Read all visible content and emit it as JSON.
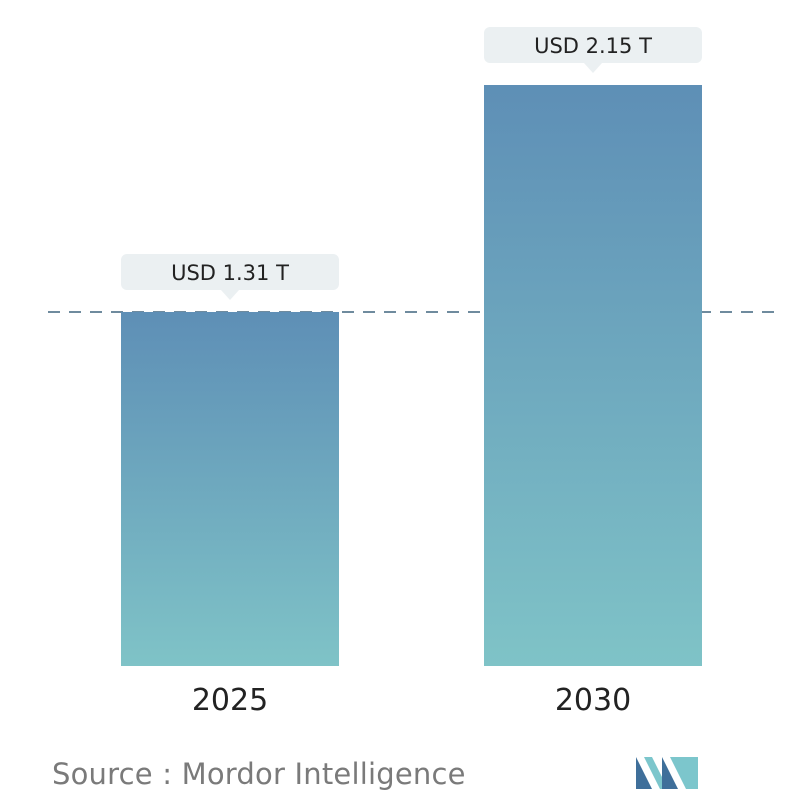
{
  "chart_data": {
    "type": "bar",
    "categories": [
      "2025",
      "2030"
    ],
    "values": [
      1.31,
      2.15
    ],
    "value_labels": [
      "USD 1.31 T",
      "USD 2.15 T"
    ],
    "title": "",
    "xlabel": "",
    "ylabel": "",
    "ylim": [
      0,
      2.15
    ],
    "reference_line_value": 1.31,
    "grid": false,
    "legend": "none"
  },
  "source": {
    "label": "Source :",
    "name": "Mordor Intelligence"
  },
  "colors": {
    "bar_top": "#5e8fb6",
    "bar_bottom": "#7fc3c7",
    "label_box": "#ebf0f2",
    "reference_line": "#6f8b9e",
    "text": "#222222",
    "source_text": "#7a7a7a",
    "logo_dark": "#3f6f9a",
    "logo_light": "#7cc6cc"
  },
  "logo": {
    "icon": "mordor-intelligence-logo-icon"
  }
}
